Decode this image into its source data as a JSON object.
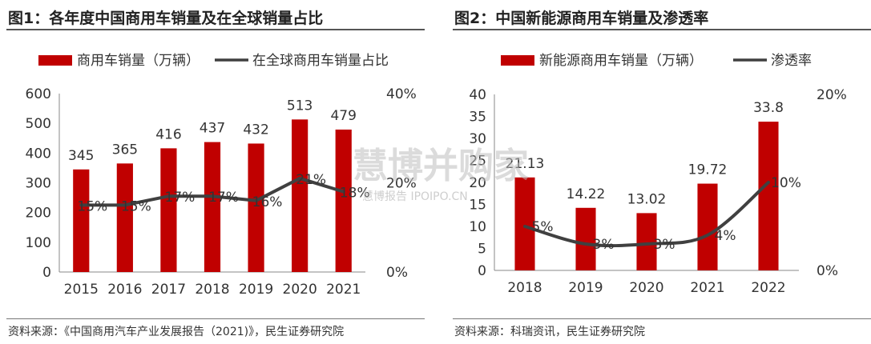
{
  "charts": [
    {
      "title": "图1：各年度中国商用车销量及在全球销量占比",
      "source": "资料来源：《中国商用汽车产业发展报告（2021)》，民生证券研究院",
      "legend": {
        "bar": "商用车销量（万辆）",
        "line": "在全球商用车销量占比"
      }
    },
    {
      "title": "图2：中国新能源商用车销量及渗透率",
      "source": "资料来源：科瑞资讯，民生证券研究院",
      "legend": {
        "bar": "新能源商用车销量（万辆）",
        "line": "渗透率"
      }
    }
  ],
  "colors": {
    "bar": "#c00000",
    "line": "#404040"
  },
  "watermark": {
    "main": "慧博并购家",
    "sub": "慧博报告 IPOIPO.CN"
  },
  "chart_data": [
    {
      "type": "bar",
      "title": "图1：各年度中国商用车销量及在全球销量占比",
      "categories": [
        "2015",
        "2016",
        "2017",
        "2018",
        "2019",
        "2020",
        "2021"
      ],
      "series": [
        {
          "name": "商用车销量（万辆）",
          "type": "bar",
          "axis": "left",
          "values": [
            345,
            365,
            416,
            437,
            432,
            513,
            479
          ],
          "labels": [
            "345",
            "365",
            "416",
            "437",
            "432",
            "513",
            "479"
          ]
        },
        {
          "name": "在全球商用车销量占比",
          "type": "line",
          "axis": "right",
          "values": [
            15,
            15,
            17,
            17,
            16,
            21,
            18
          ],
          "labels": [
            "15%",
            "15%",
            "17%",
            "17%",
            "16%",
            "21%",
            "18%"
          ]
        }
      ],
      "y_left": {
        "min": 0,
        "max": 600,
        "ticks": [
          "0",
          "100",
          "200",
          "300",
          "400",
          "500",
          "600"
        ]
      },
      "y_right": {
        "min": 0,
        "max": 40,
        "ticks": [
          "0%",
          "20%",
          "40%"
        ]
      },
      "grid": false,
      "legend_position": "top"
    },
    {
      "type": "bar",
      "title": "图2：中国新能源商用车销量及渗透率",
      "categories": [
        "2018",
        "2019",
        "2020",
        "2021",
        "2022"
      ],
      "series": [
        {
          "name": "新能源商用车销量（万辆）",
          "type": "bar",
          "axis": "left",
          "values": [
            21.13,
            14.22,
            13.02,
            19.72,
            33.8
          ],
          "labels": [
            "21.13",
            "14.22",
            "13.02",
            "19.72",
            "33.8"
          ]
        },
        {
          "name": "渗透率",
          "type": "line",
          "axis": "right",
          "values": [
            5,
            3,
            3,
            4,
            10
          ],
          "labels": [
            "5%",
            "3%",
            "3%",
            "4%",
            "10%"
          ]
        }
      ],
      "y_left": {
        "min": 0,
        "max": 40,
        "ticks": [
          "0",
          "5",
          "10",
          "15",
          "20",
          "25",
          "30",
          "35",
          "40"
        ]
      },
      "y_right": {
        "min": 0,
        "max": 20,
        "ticks": [
          "0%",
          "20%"
        ]
      },
      "grid": false,
      "legend_position": "top"
    }
  ]
}
